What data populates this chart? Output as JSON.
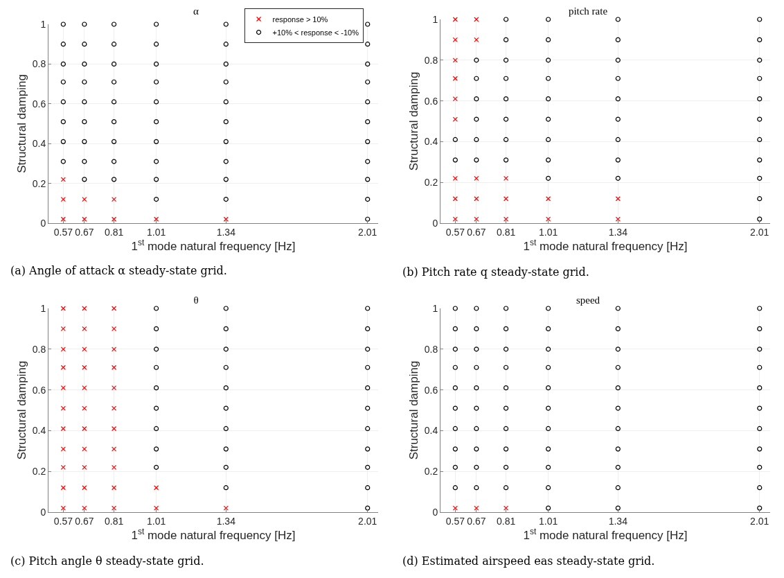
{
  "chart_data": [
    {
      "type": "scatter",
      "title": "α",
      "xlabel": "1$^{st}$ mode natural frequency [Hz]",
      "ylabel": "Structural damping",
      "xlim": [
        0.5,
        2.06
      ],
      "xticks": [
        0.57,
        0.67,
        0.81,
        1.01,
        1.34,
        2.01
      ],
      "ylim": [
        0,
        1
      ],
      "yticks": [
        0,
        0.2,
        0.4,
        0.6,
        0.8,
        1
      ],
      "grid": true,
      "legend": "top right",
      "annotations": [
        "(a) Angle of attack α steady-state grid."
      ],
      "series": [
        {
          "name": "response > 10%",
          "color": "#ff0000",
          "marker": "cross",
          "x": [
            0.57,
            0.57,
            0.57,
            0.67,
            0.67,
            0.81,
            0.81,
            1.01,
            1.34
          ],
          "values": [
            0.02,
            0.12,
            0.22,
            0.02,
            0.12,
            0.02,
            0.12,
            0.02,
            0.02
          ]
        },
        {
          "name": "+10% < response < -10%",
          "color": "#000000",
          "marker": "circle",
          "x": [
            0.57,
            0.57,
            0.57,
            0.57,
            0.57,
            0.57,
            0.57,
            0.57,
            0.67,
            0.67,
            0.67,
            0.67,
            0.67,
            0.67,
            0.67,
            0.67,
            0.67,
            0.81,
            0.81,
            0.81,
            0.81,
            0.81,
            0.81,
            0.81,
            0.81,
            0.81,
            1.01,
            1.01,
            1.01,
            1.01,
            1.01,
            1.01,
            1.01,
            1.01,
            1.01,
            1.01,
            1.34,
            1.34,
            1.34,
            1.34,
            1.34,
            1.34,
            1.34,
            1.34,
            1.34,
            1.34,
            2.01,
            2.01,
            2.01,
            2.01,
            2.01,
            2.01,
            2.01,
            2.01,
            2.01,
            2.01,
            2.01
          ],
          "values": [
            0.31,
            0.41,
            0.51,
            0.61,
            0.71,
            0.8,
            0.9,
            1,
            0.22,
            0.31,
            0.41,
            0.51,
            0.61,
            0.71,
            0.8,
            0.9,
            1,
            0.22,
            0.31,
            0.41,
            0.51,
            0.61,
            0.71,
            0.8,
            0.9,
            1,
            0.12,
            0.22,
            0.31,
            0.41,
            0.51,
            0.61,
            0.71,
            0.8,
            0.9,
            1,
            0.12,
            0.22,
            0.31,
            0.41,
            0.51,
            0.61,
            0.71,
            0.8,
            0.9,
            1,
            0.02,
            0.12,
            0.22,
            0.31,
            0.41,
            0.51,
            0.61,
            0.71,
            0.8,
            0.9,
            1
          ]
        }
      ]
    },
    {
      "type": "scatter",
      "title": "pitch rate",
      "xlabel": "1$^{st}$ mode natural frequency [Hz]",
      "ylabel": "Structural damping",
      "xlim": [
        0.5,
        2.06
      ],
      "xticks": [
        0.57,
        0.67,
        0.81,
        1.01,
        1.34,
        2.01
      ],
      "ylim": [
        0,
        1
      ],
      "yticks": [
        0,
        0.2,
        0.4,
        0.6,
        0.8,
        1
      ],
      "grid": true,
      "legend": false,
      "annotations": [
        "(b) Pitch rate q steady-state grid."
      ],
      "series": [
        {
          "color": "#ff0000",
          "marker": "cross",
          "x": [
            0.57,
            0.57,
            0.57,
            0.57,
            0.57,
            0.57,
            0.57,
            0.57,
            0.57,
            0.67,
            0.67,
            0.67,
            0.67,
            0.67,
            0.81,
            0.81,
            0.81,
            1.01,
            1.01,
            1.34,
            1.34
          ],
          "values": [
            0.02,
            0.12,
            0.22,
            0.51,
            0.61,
            0.71,
            0.8,
            0.9,
            1,
            0.02,
            0.12,
            0.22,
            0.9,
            1,
            0.02,
            0.12,
            0.22,
            0.02,
            0.12,
            0.02,
            0.12
          ]
        },
        {
          "color": "#000000",
          "marker": "circle",
          "x": [
            0.57,
            0.57,
            0.67,
            0.67,
            0.67,
            0.67,
            0.67,
            0.67,
            0.81,
            0.81,
            0.81,
            0.81,
            0.81,
            0.81,
            0.81,
            0.81,
            1.01,
            1.01,
            1.01,
            1.01,
            1.01,
            1.01,
            1.01,
            1.01,
            1.01,
            1.34,
            1.34,
            1.34,
            1.34,
            1.34,
            1.34,
            1.34,
            1.34,
            1.34,
            2.01,
            2.01,
            2.01,
            2.01,
            2.01,
            2.01,
            2.01,
            2.01,
            2.01,
            2.01,
            2.01
          ],
          "values": [
            0.31,
            0.41,
            0.31,
            0.41,
            0.51,
            0.61,
            0.71,
            0.8,
            0.31,
            0.41,
            0.51,
            0.61,
            0.71,
            0.8,
            0.9,
            1,
            0.22,
            0.31,
            0.41,
            0.51,
            0.61,
            0.71,
            0.8,
            0.9,
            1,
            0.22,
            0.31,
            0.41,
            0.51,
            0.61,
            0.71,
            0.8,
            0.9,
            1,
            0.02,
            0.12,
            0.22,
            0.31,
            0.41,
            0.51,
            0.61,
            0.71,
            0.8,
            0.9,
            1
          ]
        }
      ]
    },
    {
      "type": "scatter",
      "title": "θ",
      "xlabel": "1$^{st}$ mode natural frequency [Hz]",
      "ylabel": "Structural damping",
      "xlim": [
        0.5,
        2.06
      ],
      "xticks": [
        0.57,
        0.67,
        0.81,
        1.01,
        1.34,
        2.01
      ],
      "ylim": [
        0,
        1
      ],
      "yticks": [
        0,
        0.2,
        0.4,
        0.6,
        0.8,
        1
      ],
      "grid": true,
      "legend": false,
      "annotations": [
        "(c) Pitch angle θ steady-state grid."
      ],
      "series": [
        {
          "color": "#ff0000",
          "marker": "cross",
          "x": [
            0.57,
            0.57,
            0.57,
            0.57,
            0.57,
            0.57,
            0.57,
            0.57,
            0.57,
            0.57,
            0.57,
            0.67,
            0.67,
            0.67,
            0.67,
            0.67,
            0.67,
            0.67,
            0.67,
            0.67,
            0.67,
            0.67,
            0.81,
            0.81,
            0.81,
            0.81,
            0.81,
            0.81,
            0.81,
            0.81,
            0.81,
            0.81,
            0.81,
            1.01,
            1.01,
            1.34
          ],
          "values": [
            0.02,
            0.12,
            0.22,
            0.31,
            0.41,
            0.51,
            0.61,
            0.71,
            0.8,
            0.9,
            1,
            0.02,
            0.12,
            0.22,
            0.31,
            0.41,
            0.51,
            0.61,
            0.71,
            0.8,
            0.9,
            1,
            0.02,
            0.12,
            0.22,
            0.31,
            0.41,
            0.51,
            0.61,
            0.71,
            0.8,
            0.9,
            1,
            0.02,
            0.12,
            0.02
          ]
        },
        {
          "color": "#000000",
          "marker": "circle",
          "x": [
            1.01,
            1.01,
            1.01,
            1.01,
            1.01,
            1.01,
            1.01,
            1.01,
            1.01,
            1.34,
            1.34,
            1.34,
            1.34,
            1.34,
            1.34,
            1.34,
            1.34,
            1.34,
            1.34,
            2.01,
            2.01,
            2.01,
            2.01,
            2.01,
            2.01,
            2.01,
            2.01,
            2.01,
            2.01,
            2.01
          ],
          "values": [
            0.22,
            0.31,
            0.41,
            0.51,
            0.61,
            0.71,
            0.8,
            0.9,
            1,
            0.12,
            0.22,
            0.31,
            0.41,
            0.51,
            0.61,
            0.71,
            0.8,
            0.9,
            1,
            0.02,
            0.12,
            0.22,
            0.31,
            0.41,
            0.51,
            0.61,
            0.71,
            0.8,
            0.9,
            1
          ]
        }
      ]
    },
    {
      "type": "scatter",
      "title": "speed",
      "xlabel": "1$^{st}$ mode natural frequency [Hz]",
      "ylabel": "Structural damping",
      "xlim": [
        0.5,
        2.06
      ],
      "xticks": [
        0.57,
        0.67,
        0.81,
        1.01,
        1.34,
        2.01
      ],
      "ylim": [
        0,
        1
      ],
      "yticks": [
        0,
        0.2,
        0.4,
        0.6,
        0.8,
        1
      ],
      "grid": true,
      "legend": false,
      "annotations": [
        "(d) Estimated airspeed eas steady-state grid."
      ],
      "series": [
        {
          "color": "#ff0000",
          "marker": "cross",
          "x": [
            0.57,
            0.67,
            0.81
          ],
          "values": [
            0.02,
            0.02,
            0.02
          ]
        },
        {
          "color": "#000000",
          "marker": "circle",
          "x": [
            0.57,
            0.57,
            0.57,
            0.57,
            0.57,
            0.57,
            0.57,
            0.57,
            0.57,
            0.57,
            0.67,
            0.67,
            0.67,
            0.67,
            0.67,
            0.67,
            0.67,
            0.67,
            0.67,
            0.67,
            0.81,
            0.81,
            0.81,
            0.81,
            0.81,
            0.81,
            0.81,
            0.81,
            0.81,
            0.81,
            1.01,
            1.01,
            1.01,
            1.01,
            1.01,
            1.01,
            1.01,
            1.01,
            1.01,
            1.01,
            1.01,
            1.34,
            1.34,
            1.34,
            1.34,
            1.34,
            1.34,
            1.34,
            1.34,
            1.34,
            1.34,
            1.34,
            2.01,
            2.01,
            2.01,
            2.01,
            2.01,
            2.01,
            2.01,
            2.01,
            2.01,
            2.01,
            2.01
          ],
          "values": [
            0.12,
            0.22,
            0.31,
            0.41,
            0.51,
            0.61,
            0.71,
            0.8,
            0.9,
            1,
            0.12,
            0.22,
            0.31,
            0.41,
            0.51,
            0.61,
            0.71,
            0.8,
            0.9,
            1,
            0.12,
            0.22,
            0.31,
            0.41,
            0.51,
            0.61,
            0.71,
            0.8,
            0.9,
            1,
            0.02,
            0.12,
            0.22,
            0.31,
            0.41,
            0.51,
            0.61,
            0.71,
            0.8,
            0.9,
            1,
            0.02,
            0.12,
            0.22,
            0.31,
            0.41,
            0.51,
            0.61,
            0.71,
            0.8,
            0.9,
            1,
            0.02,
            0.12,
            0.22,
            0.31,
            0.41,
            0.51,
            0.61,
            0.71,
            0.8,
            0.9,
            1
          ]
        }
      ]
    }
  ]
}
